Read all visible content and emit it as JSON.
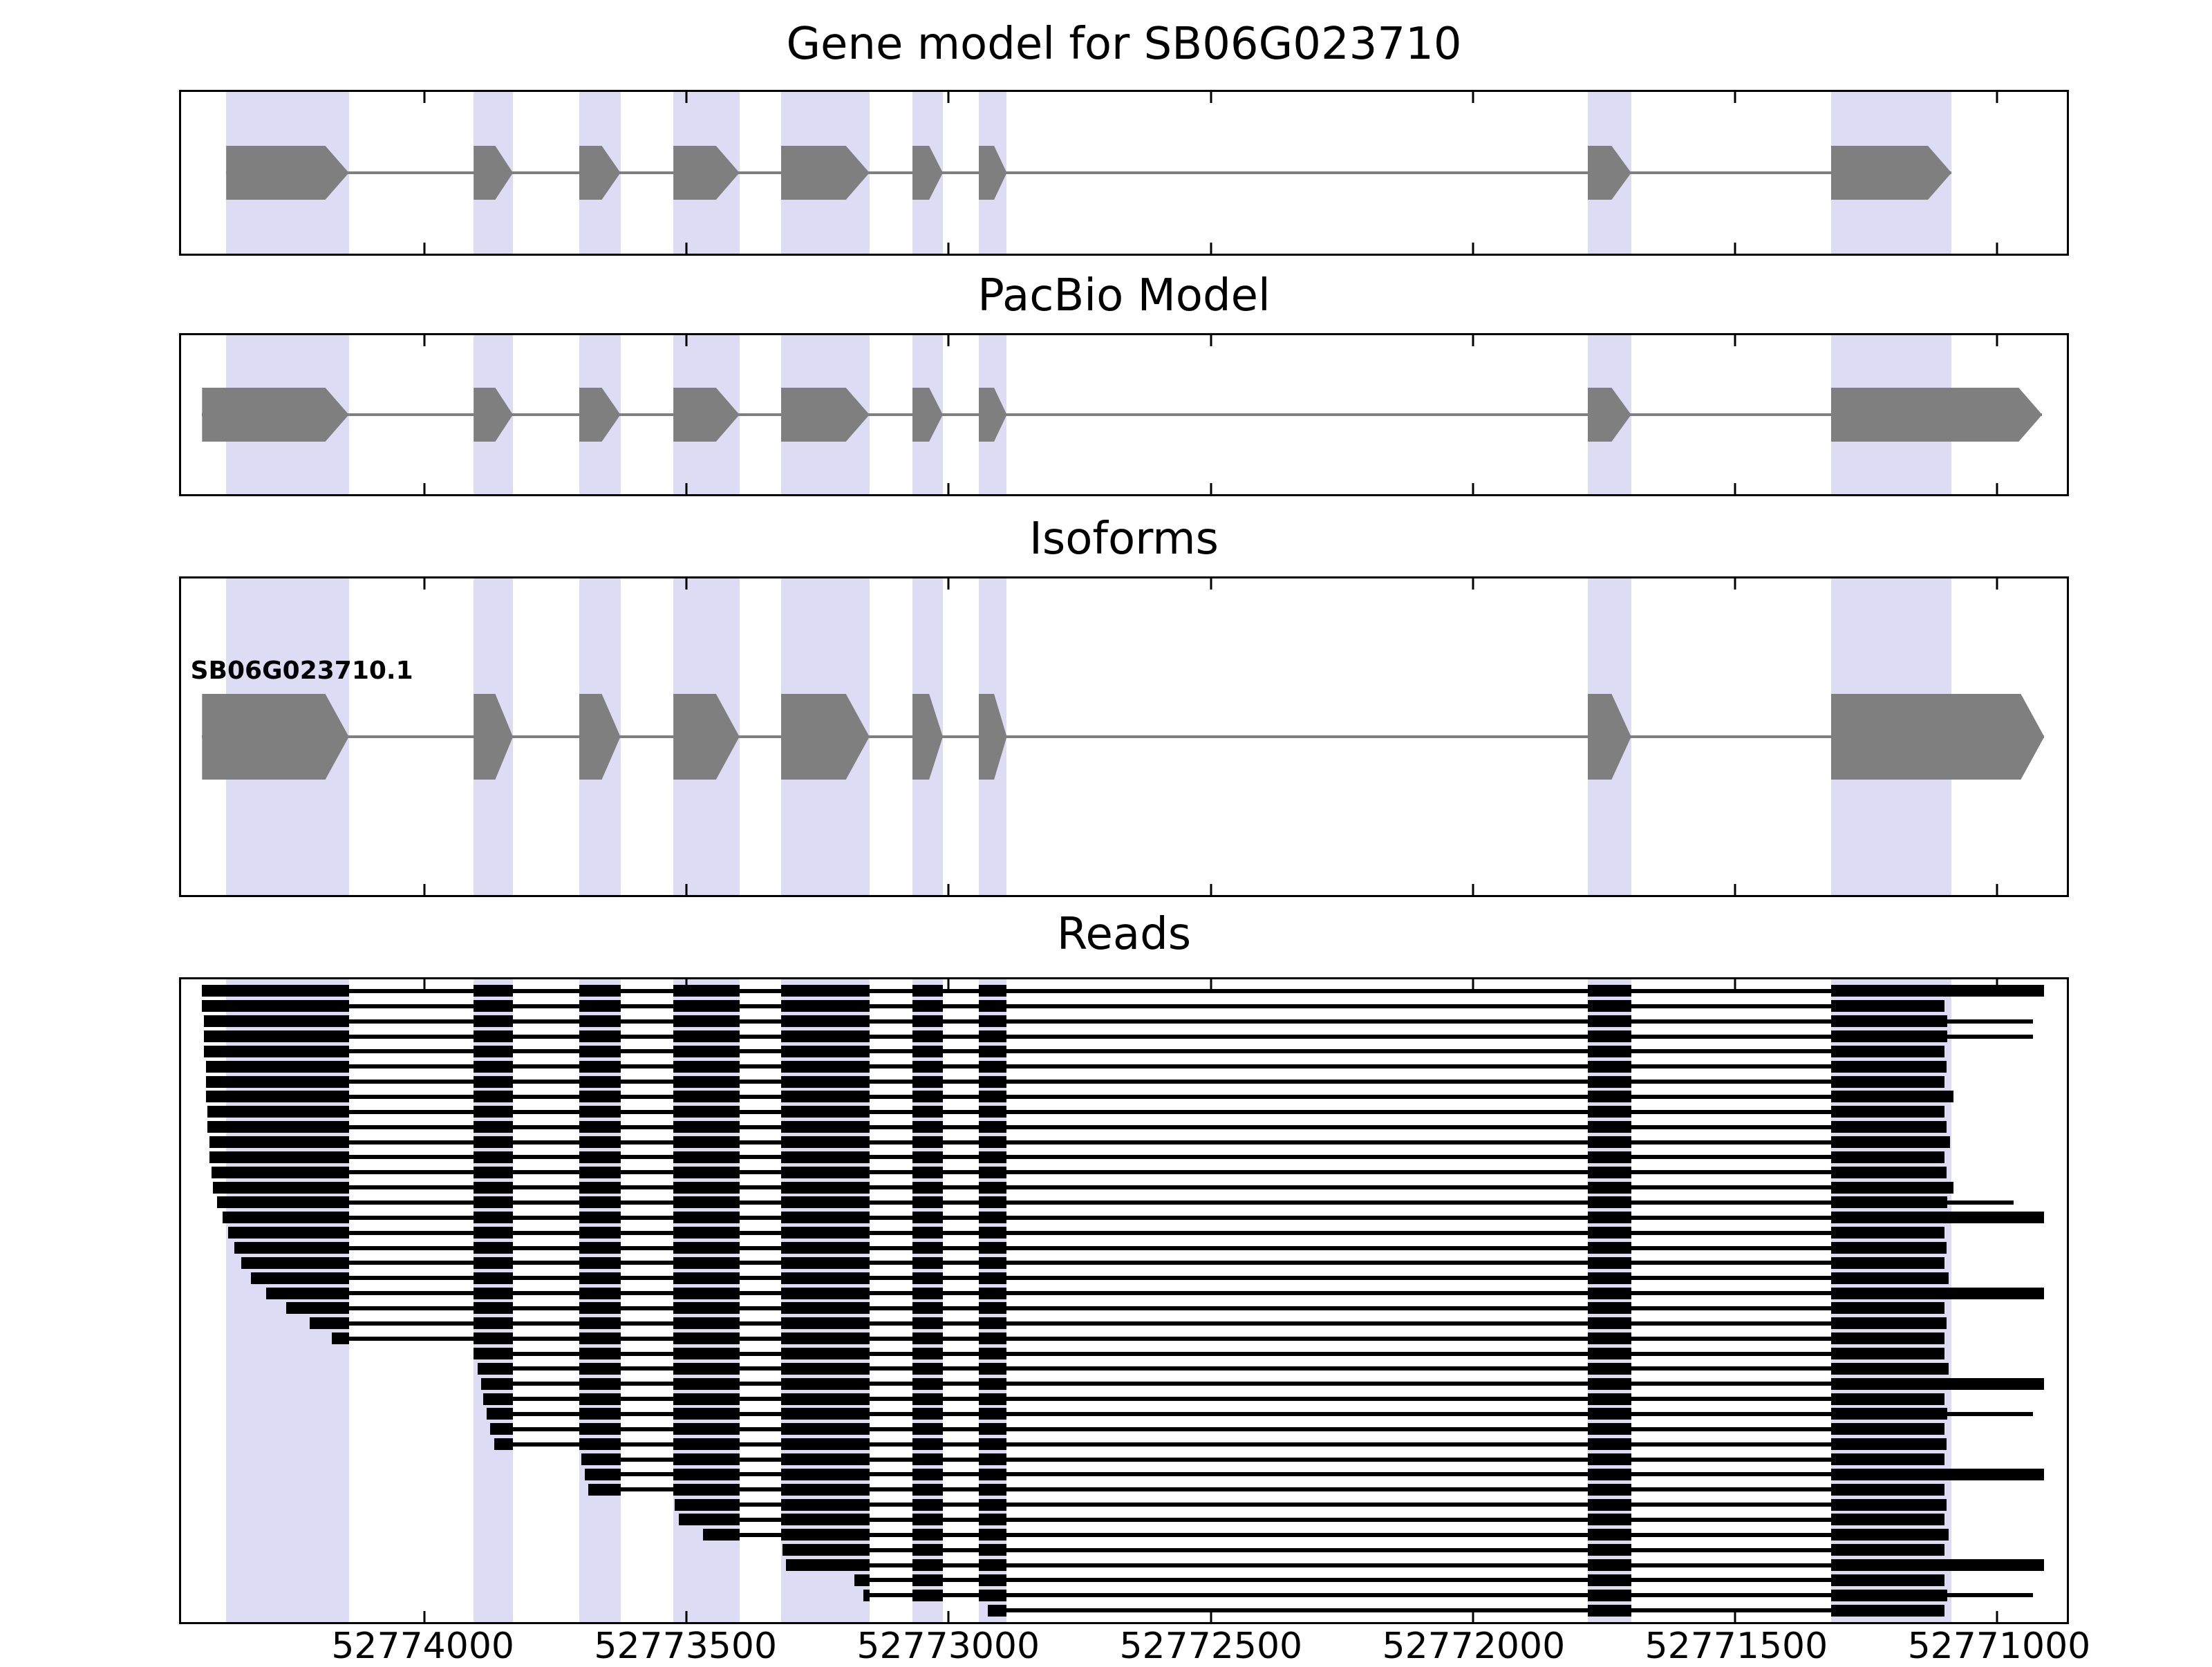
{
  "chart_data": {
    "type": "gene-model-browser",
    "axis": {
      "left_coord": 52774464,
      "right_coord": 52770867,
      "reversed": true,
      "ticks": [
        52774000,
        52773500,
        52773000,
        52772500,
        52772000,
        52771500,
        52771000
      ]
    },
    "colors": {
      "exon": "#7f7f7f",
      "intron_line": "#7f7f7f",
      "read": "#000000",
      "highlight_band": "#dcdcf4",
      "panel_border": "#000000"
    },
    "highlight_bands": [
      [
        52774378,
        52774144
      ],
      [
        52773906,
        52773831
      ],
      [
        52773705,
        52773626
      ],
      [
        52773525,
        52773399
      ],
      [
        52773320,
        52773151
      ],
      [
        52773069,
        52773011
      ],
      [
        52772943,
        52772889
      ],
      [
        52771781,
        52771698
      ],
      [
        52771317,
        52771087
      ]
    ],
    "panels": [
      {
        "title": "Gene model for SB06G023710",
        "kind": "model",
        "models": [
          {
            "label": "",
            "exons": [
              [
                52774378,
                52774144
              ],
              [
                52773906,
                52773831
              ],
              [
                52773705,
                52773626
              ],
              [
                52773525,
                52773399
              ],
              [
                52773320,
                52773151
              ],
              [
                52773069,
                52773011
              ],
              [
                52772943,
                52772889
              ],
              [
                52771781,
                52771698
              ],
              [
                52771317,
                52771087
              ]
            ]
          }
        ]
      },
      {
        "title": "PacBio Model",
        "kind": "model",
        "models": [
          {
            "label": "",
            "exons": [
              [
                52774424,
                52774144
              ],
              [
                52773906,
                52773831
              ],
              [
                52773705,
                52773626
              ],
              [
                52773525,
                52773399
              ],
              [
                52773320,
                52773151
              ],
              [
                52773069,
                52773011
              ],
              [
                52772943,
                52772889
              ],
              [
                52771781,
                52771698
              ],
              [
                52771317,
                52770914
              ]
            ]
          }
        ]
      },
      {
        "title": "Isoforms",
        "kind": "model",
        "models": [
          {
            "label": "SB06G023710.1",
            "exons": [
              [
                52774424,
                52774144
              ],
              [
                52773906,
                52773831
              ],
              [
                52773705,
                52773626
              ],
              [
                52773525,
                52773399
              ],
              [
                52773320,
                52773151
              ],
              [
                52773069,
                52773011
              ],
              [
                52772943,
                52772889
              ],
              [
                52771781,
                52771698
              ],
              [
                52771317,
                52770910
              ]
            ]
          }
        ]
      },
      {
        "title": "Reads",
        "kind": "reads",
        "reads": [
          [
            52774424,
            52770910
          ],
          [
            52774424,
            52771101
          ],
          [
            52774421,
            52770932,
            52771095
          ],
          [
            52774421,
            52770932,
            52771095
          ],
          [
            52774421,
            52771101
          ],
          [
            52774417,
            52771097
          ],
          [
            52774417,
            52771101
          ],
          [
            52774417,
            52771083
          ],
          [
            52774414,
            52771101
          ],
          [
            52774414,
            52771097
          ],
          [
            52774410,
            52771090
          ],
          [
            52774410,
            52771101
          ],
          [
            52774406,
            52771097
          ],
          [
            52774403,
            52771083
          ],
          [
            52774396,
            52770968,
            52771095
          ],
          [
            52774385,
            52770910
          ],
          [
            52774374,
            52771101
          ],
          [
            52774363,
            52771097
          ],
          [
            52774349,
            52771101
          ],
          [
            52774331,
            52771093
          ],
          [
            52774302,
            52770910
          ],
          [
            52774263,
            52771101
          ],
          [
            52774219,
            52771097
          ],
          [
            52774176,
            52771101
          ],
          [
            52773906,
            52771101
          ],
          [
            52773899,
            52771093
          ],
          [
            52773892,
            52770910
          ],
          [
            52773888,
            52771101
          ],
          [
            52773881,
            52770932,
            52771095
          ],
          [
            52773874,
            52771101
          ],
          [
            52773867,
            52771097
          ],
          [
            52773701,
            52771101
          ],
          [
            52773694,
            52770910
          ],
          [
            52773687,
            52771101
          ],
          [
            52773522,
            52771097
          ],
          [
            52773514,
            52771101
          ],
          [
            52773468,
            52771093
          ],
          [
            52773317,
            52771101
          ],
          [
            52773310,
            52770910
          ],
          [
            52773180,
            52771101
          ],
          [
            52773162,
            52770932,
            52771095
          ],
          [
            52772925,
            52771101
          ]
        ]
      }
    ]
  }
}
